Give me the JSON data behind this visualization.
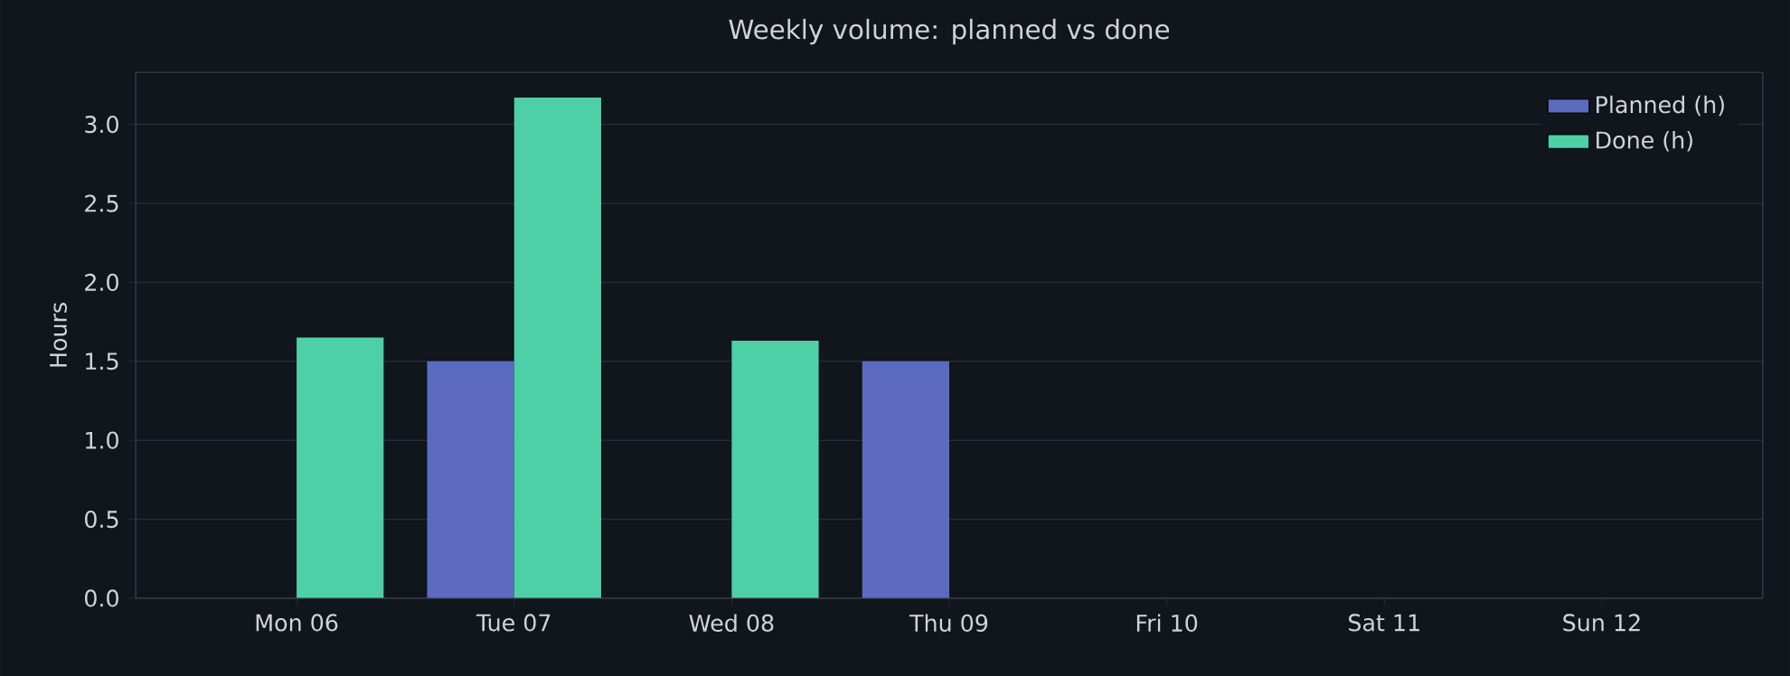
{
  "chart_data": {
    "type": "bar",
    "title": "Weekly volume: planned vs done",
    "ylabel": "Hours",
    "categories": [
      "Mon 06",
      "Tue 07",
      "Wed 08",
      "Thu 09",
      "Fri 10",
      "Sat 11",
      "Sun 12"
    ],
    "series": [
      {
        "name": "Planned (h)",
        "color": "#5c6bc0",
        "values": [
          0,
          1.5,
          0,
          1.5,
          0,
          0,
          0
        ]
      },
      {
        "name": "Done (h)",
        "color": "#4dd0a6",
        "values": [
          1.65,
          3.17,
          1.63,
          0,
          0,
          0,
          0
        ]
      }
    ],
    "ylim": [
      0,
      3.33
    ],
    "yticks": [
      {
        "value": 0,
        "label": "0.0"
      },
      0.5,
      {
        "value": 1,
        "label": "1.0"
      },
      1.5,
      {
        "value": 2,
        "label": "2.0"
      },
      2.5,
      {
        "value": 3,
        "label": "3.0"
      }
    ],
    "grid": "y",
    "legend": "top right"
  }
}
